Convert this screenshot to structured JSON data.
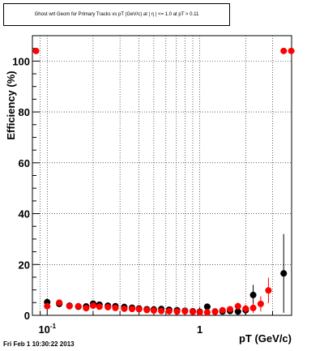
{
  "chart_data": {
    "type": "scatter",
    "title": "Ghost wrt Geom for Primary Tracks vs pT (GeV/c) at |  η | <= 1.0 at pT > 0.11",
    "xlabel": "pT (GeV/c)",
    "ylabel": "Efficiency (%)",
    "x_scale": "log",
    "xlim": [
      0.08,
      4.0
    ],
    "ylim": [
      0,
      110
    ],
    "y_ticks": [
      0,
      20,
      40,
      60,
      80,
      100
    ],
    "y_tick_labels": [
      "0",
      "20",
      "40",
      "60",
      "80",
      "100"
    ],
    "x_tick_labels": [
      {
        "x": 0.1,
        "base": "10",
        "exp": "-1"
      },
      {
        "x": 1,
        "base": "1",
        "exp": ""
      }
    ],
    "grid": true,
    "series": [
      {
        "color": "#000000",
        "points": [
          {
            "x": 0.1,
            "y": 5.2,
            "err": 1.5
          },
          {
            "x": 0.12,
            "y": 4.5,
            "err": 1.2
          },
          {
            "x": 0.14,
            "y": 3.8,
            "err": 1.0
          },
          {
            "x": 0.16,
            "y": 3.4,
            "err": 0.9
          },
          {
            "x": 0.18,
            "y": 3.5,
            "err": 0.9
          },
          {
            "x": 0.2,
            "y": 4.6,
            "err": 0.9
          },
          {
            "x": 0.22,
            "y": 4.2,
            "err": 0.9
          },
          {
            "x": 0.25,
            "y": 3.8,
            "err": 0.9
          },
          {
            "x": 0.28,
            "y": 3.6,
            "err": 0.9
          },
          {
            "x": 0.32,
            "y": 3.3,
            "err": 0.9
          },
          {
            "x": 0.36,
            "y": 3.0,
            "err": 0.9
          },
          {
            "x": 0.4,
            "y": 2.7,
            "err": 0.9
          },
          {
            "x": 0.45,
            "y": 2.4,
            "err": 0.8
          },
          {
            "x": 0.5,
            "y": 2.3,
            "err": 0.8
          },
          {
            "x": 0.56,
            "y": 2.5,
            "err": 0.8
          },
          {
            "x": 0.63,
            "y": 2.2,
            "err": 0.8
          },
          {
            "x": 0.71,
            "y": 2.0,
            "err": 0.8
          },
          {
            "x": 0.8,
            "y": 1.8,
            "err": 0.8
          },
          {
            "x": 0.9,
            "y": 1.6,
            "err": 0.8
          },
          {
            "x": 1.0,
            "y": 1.4,
            "err": 0.8
          },
          {
            "x": 1.12,
            "y": 3.4,
            "err": 1.0
          },
          {
            "x": 1.26,
            "y": 1.5,
            "err": 1.0
          },
          {
            "x": 1.41,
            "y": 1.5,
            "err": 1.0
          },
          {
            "x": 1.58,
            "y": 1.7,
            "err": 1.2
          },
          {
            "x": 1.78,
            "y": 1.5,
            "err": 1.5
          },
          {
            "x": 2.0,
            "y": 2.0,
            "err": 2.0
          },
          {
            "x": 2.24,
            "y": 8.0,
            "err": 4.0
          },
          {
            "x": 3.55,
            "y": 16.5,
            "err": 15.5
          }
        ]
      },
      {
        "color": "#ff0000",
        "points": [
          {
            "x": 0.0845,
            "y": 104.0,
            "err": 0
          },
          {
            "x": 0.1,
            "y": 3.6,
            "err": 1.3
          },
          {
            "x": 0.12,
            "y": 5.0,
            "err": 1.2
          },
          {
            "x": 0.14,
            "y": 3.6,
            "err": 1.0
          },
          {
            "x": 0.16,
            "y": 3.6,
            "err": 0.9
          },
          {
            "x": 0.18,
            "y": 2.8,
            "err": 0.9
          },
          {
            "x": 0.2,
            "y": 3.8,
            "err": 0.9
          },
          {
            "x": 0.22,
            "y": 3.4,
            "err": 0.9
          },
          {
            "x": 0.25,
            "y": 3.2,
            "err": 0.9
          },
          {
            "x": 0.28,
            "y": 2.9,
            "err": 0.9
          },
          {
            "x": 0.32,
            "y": 2.6,
            "err": 0.9
          },
          {
            "x": 0.36,
            "y": 2.5,
            "err": 0.9
          },
          {
            "x": 0.4,
            "y": 2.4,
            "err": 0.8
          },
          {
            "x": 0.45,
            "y": 2.1,
            "err": 0.8
          },
          {
            "x": 0.5,
            "y": 1.9,
            "err": 0.8
          },
          {
            "x": 0.56,
            "y": 1.7,
            "err": 0.8
          },
          {
            "x": 0.63,
            "y": 1.6,
            "err": 0.8
          },
          {
            "x": 0.71,
            "y": 1.5,
            "err": 0.8
          },
          {
            "x": 0.8,
            "y": 1.6,
            "err": 0.8
          },
          {
            "x": 0.9,
            "y": 1.4,
            "err": 0.8
          },
          {
            "x": 1.0,
            "y": 1.2,
            "err": 0.8
          },
          {
            "x": 1.12,
            "y": 1.2,
            "err": 0.9
          },
          {
            "x": 1.26,
            "y": 1.4,
            "err": 1.0
          },
          {
            "x": 1.41,
            "y": 2.0,
            "err": 1.0
          },
          {
            "x": 1.58,
            "y": 2.4,
            "err": 1.2
          },
          {
            "x": 1.78,
            "y": 3.6,
            "err": 1.4
          },
          {
            "x": 2.0,
            "y": 2.6,
            "err": 1.6
          },
          {
            "x": 2.24,
            "y": 2.9,
            "err": 2.0
          },
          {
            "x": 2.51,
            "y": 4.5,
            "err": 3.0
          },
          {
            "x": 2.82,
            "y": 9.8,
            "err": 5.0
          },
          {
            "x": 3.55,
            "y": 104.0,
            "err": 0
          },
          {
            "x": 3.98,
            "y": 104.0,
            "err": 0
          }
        ]
      }
    ]
  },
  "footer": {
    "timestamp": "Fri Feb  1 10:30:22 2013"
  }
}
